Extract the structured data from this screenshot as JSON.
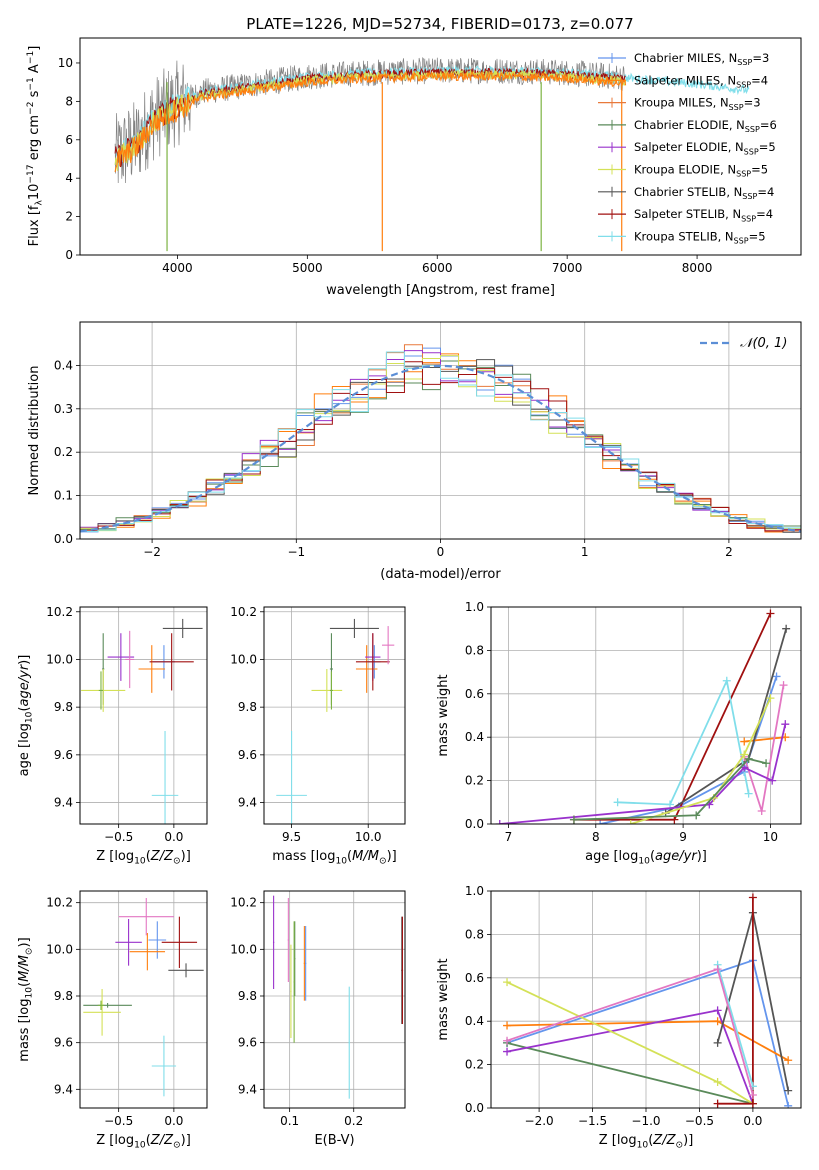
{
  "figure": {
    "title": "PLATE=1226, MJD=52734, FIBERID=0173, z=0.077"
  },
  "colors": [
    "#6495ed",
    "#ff7f0e",
    "#e8793b",
    "#5a8a5a",
    "#9932cc",
    "#d4e157",
    "#555555",
    "#a01010",
    "#80deea",
    "#e377c2",
    "#7cb342",
    "#c06ec0"
  ],
  "chart_data": [
    {
      "id": "spectrum",
      "type": "line",
      "xlabel": "wavelength [Angstrom, rest frame]",
      "ylabel": "Flux [f_λ 10^-17 erg cm^-2 s^-1 A^-1]",
      "xlim": [
        3250,
        8800
      ],
      "ylim": [
        0,
        11.3
      ],
      "xticks": [
        4000,
        5000,
        6000,
        7000,
        8000
      ],
      "yticks": [
        0,
        2,
        4,
        6,
        8,
        10
      ],
      "grid": false,
      "legend_position": "right",
      "series": [
        {
          "name": "Chabrier MILES, N_SSP=3",
          "color": "#6495ed"
        },
        {
          "name": "Salpeter MILES, N_SSP=4",
          "color": "#ff7f0e"
        },
        {
          "name": "Kroupa MILES, N_SSP=3",
          "color": "#e8793b"
        },
        {
          "name": "Chabrier ELODIE, N_SSP=6",
          "color": "#5a8a5a"
        },
        {
          "name": "Salpeter ELODIE, N_SSP=5",
          "color": "#9932cc"
        },
        {
          "name": "Kroupa ELODIE, N_SSP=5",
          "color": "#d4e157"
        },
        {
          "name": "Chabrier STELIB, N_SSP=4",
          "color": "#555555"
        },
        {
          "name": "Salpeter STELIB, N_SSP=4",
          "color": "#a01010"
        },
        {
          "name": "Kroupa STELIB, N_SSP=5",
          "color": "#80deea"
        }
      ],
      "continuum": {
        "x": [
          3500,
          3600,
          3700,
          3800,
          3900,
          4000,
          4200,
          4500,
          5000,
          5500,
          6000,
          6500,
          7000,
          7500,
          8000,
          8500
        ],
        "y": [
          5.0,
          5.5,
          6.0,
          7.0,
          7.5,
          7.9,
          8.5,
          8.8,
          9.3,
          9.5,
          9.6,
          9.6,
          9.5,
          9.2,
          8.9,
          8.5
        ]
      }
    },
    {
      "id": "residuals",
      "type": "histogram",
      "xlabel": "(data-model)/error",
      "ylabel": "Normed distribution",
      "xlim": [
        -2.5,
        2.5
      ],
      "ylim": [
        0,
        0.5
      ],
      "xticks": [
        -2,
        -1,
        0,
        1,
        2
      ],
      "yticks": [
        0.0,
        0.1,
        0.2,
        0.3,
        0.4
      ],
      "grid": true,
      "legend": "N(0,1)",
      "legend_position": "top-right",
      "reference_curve": {
        "name": "N(0,1)",
        "mean": 0,
        "sigma": 1,
        "color": "#5b8ed6"
      }
    },
    {
      "id": "age_vs_Z",
      "type": "errorbar",
      "xlabel": "Z [log10(Z/Z⊙)]",
      "ylabel": "age  [log10(age/yr)]",
      "xlim": [
        -0.85,
        0.3
      ],
      "ylim": [
        9.31,
        10.22
      ],
      "xticks": [
        -0.5,
        0.0
      ],
      "yticks": [
        9.4,
        9.6,
        9.8,
        10.0,
        10.2
      ],
      "grid": true,
      "points": [
        {
          "x": -0.09,
          "y": 9.99,
          "xerr": 0.1,
          "yerr": 0.07,
          "color": "#6495ed"
        },
        {
          "x": -0.2,
          "y": 9.96,
          "xerr": 0.12,
          "yerr": 0.1,
          "color": "#ff7f0e"
        },
        {
          "x": -0.64,
          "y": 9.96,
          "xerr": 0.01,
          "yerr": 0.15,
          "color": "#5a8a5a"
        },
        {
          "x": -0.48,
          "y": 10.01,
          "xerr": 0.12,
          "yerr": 0.1,
          "color": "#9932cc"
        },
        {
          "x": -0.64,
          "y": 9.87,
          "xerr": 0.2,
          "yerr": 0.09,
          "color": "#d4e157"
        },
        {
          "x": 0.08,
          "y": 10.13,
          "xerr": 0.18,
          "yerr": 0.04,
          "color": "#555555"
        },
        {
          "x": -0.02,
          "y": 9.99,
          "xerr": 0.2,
          "yerr": 0.12,
          "color": "#a01010"
        },
        {
          "x": -0.08,
          "y": 9.43,
          "xerr": 0.12,
          "yerr": 0.27,
          "color": "#80deea"
        },
        {
          "x": -0.4,
          "y": 10.0,
          "xerr": 0.04,
          "yerr": 0.12,
          "color": "#e377c2"
        },
        {
          "x": -0.66,
          "y": 9.87,
          "xerr": 0.02,
          "yerr": 0.08,
          "color": "#7cb342"
        }
      ]
    },
    {
      "id": "age_vs_mass",
      "type": "errorbar",
      "xlabel": "mass [log10(M/M⊙)]",
      "ylabel": "",
      "xlim": [
        9.32,
        10.24
      ],
      "ylim": [
        9.31,
        10.22
      ],
      "xticks": [
        9.5,
        10.0
      ],
      "yticks": [
        9.4,
        9.6,
        9.8,
        10.0,
        10.2
      ],
      "grid": true,
      "points": [
        {
          "x": 10.04,
          "y": 9.99,
          "xerr": 0.04,
          "yerr": 0.07,
          "color": "#6495ed"
        },
        {
          "x": 9.99,
          "y": 9.96,
          "xerr": 0.07,
          "yerr": 0.1,
          "color": "#ff7f0e"
        },
        {
          "x": 9.76,
          "y": 9.96,
          "xerr": 0.01,
          "yerr": 0.15,
          "color": "#5a8a5a"
        },
        {
          "x": 10.03,
          "y": 10.01,
          "xerr": 0.05,
          "yerr": 0.1,
          "color": "#9932cc"
        },
        {
          "x": 9.73,
          "y": 9.87,
          "xerr": 0.1,
          "yerr": 0.09,
          "color": "#d4e157"
        },
        {
          "x": 9.91,
          "y": 10.13,
          "xerr": 0.16,
          "yerr": 0.04,
          "color": "#555555"
        },
        {
          "x": 10.03,
          "y": 9.99,
          "xerr": 0.11,
          "yerr": 0.12,
          "color": "#a01010"
        },
        {
          "x": 9.5,
          "y": 9.43,
          "xerr": 0.1,
          "yerr": 0.27,
          "color": "#80deea"
        },
        {
          "x": 10.13,
          "y": 10.06,
          "xerr": 0.04,
          "yerr": 0.08,
          "color": "#e377c2"
        },
        {
          "x": 9.76,
          "y": 9.87,
          "xerr": 0.01,
          "yerr": 0.08,
          "color": "#7cb342"
        }
      ]
    },
    {
      "id": "weight_vs_age",
      "type": "line",
      "xlabel": "age  [log10(age/yr)]",
      "ylabel": "mass weight",
      "xlim": [
        6.8,
        10.35
      ],
      "ylim": [
        0,
        1.0
      ],
      "xticks": [
        7,
        8,
        9,
        10
      ],
      "yticks": [
        0.0,
        0.2,
        0.4,
        0.6,
        0.8,
        1.0
      ],
      "grid": true,
      "series": [
        {
          "color": "#6495ed",
          "x": [
            8.05,
            8.95,
            9.7,
            10.07
          ],
          "y": [
            0.0,
            0.08,
            0.24,
            0.68
          ]
        },
        {
          "color": "#ff7f0e",
          "x": [
            9.7,
            10.17
          ],
          "y": [
            0.38,
            0.4
          ]
        },
        {
          "color": "#a01010",
          "x": [
            7.75,
            8.9,
            10.0
          ],
          "y": [
            0.02,
            0.02,
            0.97
          ]
        },
        {
          "color": "#555555",
          "x": [
            8.8,
            9.75,
            10.18
          ],
          "y": [
            0.05,
            0.3,
            0.9
          ]
        },
        {
          "color": "#80deea",
          "x": [
            8.25,
            8.85,
            9.5,
            9.75
          ],
          "y": [
            0.1,
            0.09,
            0.66,
            0.14
          ]
        },
        {
          "color": "#e377c2",
          "x": [
            9.7,
            9.9,
            10.15
          ],
          "y": [
            0.31,
            0.06,
            0.64
          ]
        },
        {
          "color": "#9932cc",
          "x": [
            6.9,
            9.3,
            9.7,
            10.02,
            10.17
          ],
          "y": [
            0.0,
            0.09,
            0.26,
            0.2,
            0.46
          ]
        },
        {
          "color": "#d4e157",
          "x": [
            8.4,
            9.35,
            9.7,
            10.0
          ],
          "y": [
            0.0,
            0.12,
            0.32,
            0.58
          ]
        },
        {
          "color": "#5a8a5a",
          "x": [
            7.75,
            9.15,
            9.75,
            9.95
          ],
          "y": [
            0.02,
            0.04,
            0.3,
            0.28
          ]
        }
      ]
    },
    {
      "id": "mass_vs_Z",
      "type": "errorbar",
      "xlabel": "Z [log10(Z/Z⊙)]",
      "ylabel": "mass [log10(M/M⊙)]",
      "xlim": [
        -0.85,
        0.3
      ],
      "ylim": [
        9.32,
        10.25
      ],
      "xticks": [
        -0.5,
        0.0
      ],
      "yticks": [
        9.4,
        9.6,
        9.8,
        10.0,
        10.2
      ],
      "grid": true,
      "points": [
        {
          "x": -0.15,
          "y": 10.04,
          "xerr": 0.08,
          "yerr": 0.08,
          "color": "#6495ed"
        },
        {
          "x": -0.24,
          "y": 9.99,
          "xerr": 0.16,
          "yerr": 0.08,
          "color": "#ff7f0e"
        },
        {
          "x": -0.6,
          "y": 9.76,
          "xerr": 0.22,
          "yerr": 0.01,
          "color": "#5a8a5a"
        },
        {
          "x": -0.41,
          "y": 10.03,
          "xerr": 0.12,
          "yerr": 0.1,
          "color": "#9932cc"
        },
        {
          "x": -0.65,
          "y": 9.73,
          "xerr": 0.17,
          "yerr": 0.1,
          "color": "#d4e157"
        },
        {
          "x": 0.11,
          "y": 9.91,
          "xerr": 0.16,
          "yerr": 0.03,
          "color": "#555555"
        },
        {
          "x": 0.05,
          "y": 10.03,
          "xerr": 0.16,
          "yerr": 0.11,
          "color": "#a01010"
        },
        {
          "x": -0.09,
          "y": 9.5,
          "xerr": 0.11,
          "yerr": 0.13,
          "color": "#80deea"
        },
        {
          "x": -0.25,
          "y": 10.14,
          "xerr": 0.25,
          "yerr": 0.08,
          "color": "#e377c2"
        },
        {
          "x": -0.66,
          "y": 9.76,
          "xerr": 0.03,
          "yerr": 0.02,
          "color": "#7cb342"
        }
      ]
    },
    {
      "id": "mass_vs_EBV",
      "type": "errorbar",
      "xlabel": "E(B-V)",
      "ylabel": "",
      "xlim": [
        0.06,
        0.28
      ],
      "ylim": [
        9.32,
        10.25
      ],
      "xticks": [
        0.1,
        0.2
      ],
      "yticks": [
        9.4,
        9.6,
        9.8,
        10.0,
        10.2
      ],
      "grid": true,
      "points": [
        {
          "x": 0.125,
          "y": 9.94,
          "xerr": 0.001,
          "yerr": 0.16,
          "color": "#6495ed"
        },
        {
          "x": 0.123,
          "y": 9.94,
          "xerr": 0.001,
          "yerr": 0.16,
          "color": "#ff7f0e"
        },
        {
          "x": 0.108,
          "y": 9.96,
          "xerr": 0.001,
          "yerr": 0.16,
          "color": "#5a8a5a"
        },
        {
          "x": 0.075,
          "y": 10.03,
          "xerr": 0.001,
          "yerr": 0.2,
          "color": "#9932cc"
        },
        {
          "x": 0.102,
          "y": 9.82,
          "xerr": 0.001,
          "yerr": 0.2,
          "color": "#d4e157"
        },
        {
          "x": 0.275,
          "y": 9.91,
          "xerr": 0.001,
          "yerr": 0.23,
          "color": "#555555"
        },
        {
          "x": 0.276,
          "y": 9.91,
          "xerr": 0.001,
          "yerr": 0.23,
          "color": "#a01010"
        },
        {
          "x": 0.193,
          "y": 9.6,
          "xerr": 0.001,
          "yerr": 0.24,
          "color": "#80deea"
        },
        {
          "x": 0.098,
          "y": 10.04,
          "xerr": 0.001,
          "yerr": 0.18,
          "color": "#e377c2"
        },
        {
          "x": 0.107,
          "y": 9.86,
          "xerr": 0.001,
          "yerr": 0.26,
          "color": "#7cb342"
        }
      ]
    },
    {
      "id": "weight_vs_Z",
      "type": "line",
      "xlabel": "Z [log10(Z/Z⊙)]",
      "ylabel": "mass weight",
      "xlim": [
        -2.45,
        0.45
      ],
      "ylim": [
        0,
        1.0
      ],
      "xticks": [
        -2.0,
        -1.5,
        -1.0,
        -0.5,
        0.0
      ],
      "yticks": [
        0.0,
        0.2,
        0.4,
        0.6,
        0.8,
        1.0
      ],
      "grid": true,
      "series": [
        {
          "color": "#6495ed",
          "x": [
            -2.3,
            0.0,
            0.33
          ],
          "y": [
            0.3,
            0.68,
            0.01
          ]
        },
        {
          "color": "#ff7f0e",
          "x": [
            -2.3,
            -0.33,
            0.33
          ],
          "y": [
            0.38,
            0.4,
            0.22
          ]
        },
        {
          "color": "#5a8a5a",
          "x": [
            -2.3,
            0.0
          ],
          "y": [
            0.3,
            0.02
          ]
        },
        {
          "color": "#9932cc",
          "x": [
            -2.3,
            -0.33,
            0.0
          ],
          "y": [
            0.26,
            0.45,
            0.02
          ]
        },
        {
          "color": "#d4e157",
          "x": [
            -2.3,
            -0.33,
            0.0
          ],
          "y": [
            0.58,
            0.12,
            0.02
          ]
        },
        {
          "color": "#555555",
          "x": [
            -0.33,
            0.0,
            0.33
          ],
          "y": [
            0.3,
            0.9,
            0.08
          ]
        },
        {
          "color": "#a01010",
          "x": [
            -0.33,
            0.0,
            0.0
          ],
          "y": [
            0.02,
            0.02,
            0.97
          ]
        },
        {
          "color": "#80deea",
          "x": [
            -0.33,
            0.0
          ],
          "y": [
            0.66,
            0.1
          ]
        },
        {
          "color": "#e377c2",
          "x": [
            -2.3,
            -0.33,
            0.0
          ],
          "y": [
            0.31,
            0.64,
            0.06
          ]
        }
      ]
    }
  ]
}
